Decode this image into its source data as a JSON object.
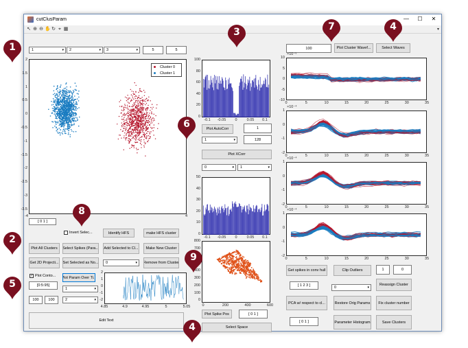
{
  "window": {
    "title": "cutClusParam",
    "minimize": "—",
    "maximize": "☐",
    "close": "✕"
  },
  "toolbar": {
    "icons": [
      "arrow-icon",
      "zoom-in-icon",
      "zoom-out-icon",
      "pan-icon",
      "rotate-icon",
      "datacursor-icon",
      "brush-icon"
    ],
    "overflow": "▾"
  },
  "colors": {
    "cluster0": "#b5152b",
    "cluster1": "#1a7cc1",
    "hist": "#2020a8",
    "trace": "#1a7cc1",
    "spike_pos": "#e0541c",
    "badge": "#7a1020"
  },
  "badges": [
    "1",
    "2",
    "3",
    "4",
    "4",
    "5",
    "6",
    "7",
    "8",
    "9"
  ],
  "top_controls": {
    "dim1": "1",
    "dim2": "2",
    "dim3": "3",
    "field_a": "5",
    "field_b": "5"
  },
  "scatter": {
    "legend": [
      "Cluster 0",
      "Cluster 1"
    ],
    "yticks": [
      "2",
      "1.5",
      "1",
      "0.5",
      "0",
      "-0.5",
      "-1",
      "-1.5",
      "-2",
      "-2.5",
      "-3",
      "-3.5"
    ],
    "xticks": [
      "-4",
      "4"
    ]
  },
  "controls": {
    "selection_vec": "[ 0  1 ]",
    "invert_select": "Invert Selec...",
    "identify_hfs": "Identify HFS",
    "make_hfs_cluster": "make HFS cluster",
    "plot_all_clusters": "Plot All Clusters",
    "select_spikes": "Select Spikes (Para...",
    "add_selected": "Add Selected to Cl...",
    "make_new_cluster": "Make New Cluster",
    "get_2d_projections": "Get 2D Projecti...",
    "set_selected_as_noise": "Set Selected as No...",
    "noise_select": "0",
    "remove_from_cluster": "Remove from Cluster",
    "plot_contours": "Plot Conto...",
    "contour_range": "[0:5:95]",
    "plot_param_over_time": "Plot Param Over Ti...",
    "param_select": "1",
    "param_select_2": "2",
    "field_100a": "100",
    "field_100b": "100",
    "edit_text": "Edit Text"
  },
  "time_plot": {
    "yticks": [
      "2",
      "1",
      "0",
      "-1",
      "-2"
    ],
    "xticks": [
      "4.85",
      "4.9",
      "4.95",
      "5",
      "5.05"
    ]
  },
  "autocorr": {
    "yticks": [
      "100",
      "80",
      "60",
      "40",
      "20",
      "0"
    ],
    "xticks": [
      "-0.1",
      "-0.05",
      "0",
      "0.05",
      "0.1"
    ],
    "plot_button": "Plot AutoCorr",
    "field_1": "1",
    "field_128": "128",
    "select": "1"
  },
  "xcorr": {
    "plot_button": "Plot XCorr",
    "select_a": "0",
    "select_b": "1",
    "yticks": [
      "50",
      "40",
      "30",
      "20",
      "10",
      "0"
    ],
    "xticks": [
      "-0.1",
      "-0.05",
      "0",
      "0.05",
      "0.1"
    ]
  },
  "spikepos": {
    "yticks": [
      "800",
      "700",
      "600",
      "500",
      "400",
      "300",
      "200",
      "100",
      "0"
    ],
    "xticks": [
      "0",
      "200",
      "400",
      "600"
    ],
    "plot_button": "Plot Spike Pos",
    "vec": "[ 0  1 ]",
    "select_space": "Select Space"
  },
  "waveforms": {
    "count_field": "100",
    "plot_button": "Plot Cluster Wavef...",
    "select_waves": "Select Waves",
    "panels": [
      {
        "exponent": "×10⁻⁵",
        "yticks": [
          "10",
          "5",
          "0",
          "-5",
          "-10"
        ]
      },
      {
        "exponent": "×10⁻⁴",
        "yticks": [
          "1",
          "0",
          "-1",
          "-2"
        ]
      },
      {
        "exponent": "×10⁻⁴",
        "yticks": [
          "1",
          "0",
          "-1",
          "-2"
        ]
      },
      {
        "exponent": "×10⁻⁴",
        "yticks": [
          "1",
          "0",
          "-1",
          "-2"
        ]
      }
    ],
    "xticks": [
      "0",
      "5",
      "10",
      "15",
      "20",
      "25",
      "30",
      "35"
    ]
  },
  "bottom_right": {
    "conv_hull": "Get spikes in conv hull",
    "clip_outliers": "Clip Outliers",
    "field_1": "1",
    "field_0": "0",
    "vec_123": "[ 1 2 3 ]",
    "select_0": "0",
    "reassign_cluster": "Reassign Cluster",
    "pca": "PCA w/ respect to cl...",
    "restore_params": "Restore Orig Params",
    "fix_cluster_number": "Fix cluster number",
    "vec_01": "[ 0  1 ]",
    "param_histogram": "Parameter Histogram",
    "save_clusters": "Save Clusters"
  }
}
